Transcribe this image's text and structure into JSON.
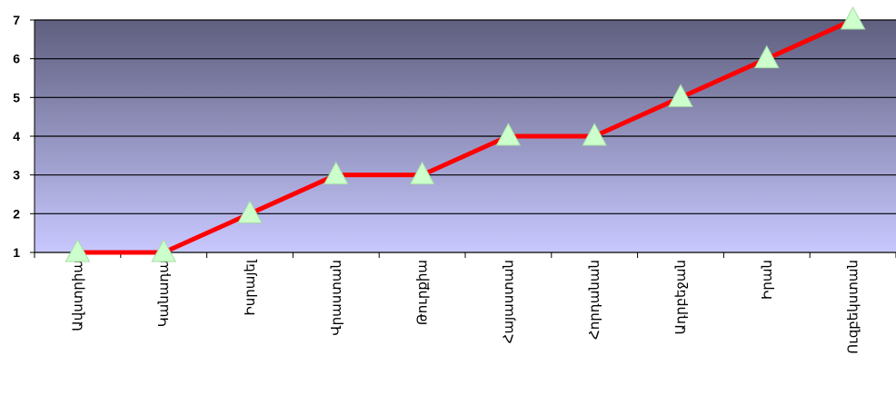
{
  "chart_data": {
    "type": "line",
    "categories": [
      "Ավստրիա",
      "Կանադա",
      "Իսրայել",
      "Վրաստան",
      "Թուրքիա",
      "Հայաստան",
      "Հորդանան",
      "Ադրբեջան",
      "Իրան",
      "Ուզբեկստան"
    ],
    "series": [
      {
        "values": [
          1,
          1,
          2,
          3,
          3,
          4,
          4,
          5,
          6,
          7
        ]
      }
    ],
    "ylim": [
      1,
      7
    ],
    "yticks": [
      1,
      2,
      3,
      4,
      5,
      6,
      7
    ],
    "grid": true,
    "legend": "none",
    "line_color": "#ff0000",
    "marker": "triangle",
    "marker_color": "#ccffcc",
    "background_gradient": [
      "#5f5f7f",
      "#c8c8ff"
    ]
  }
}
